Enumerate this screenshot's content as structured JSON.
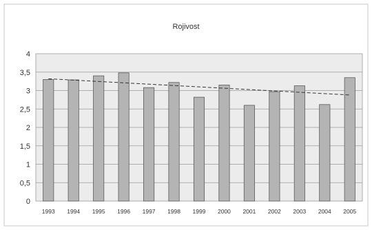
{
  "chart_data": {
    "type": "bar",
    "title": "Rojivost",
    "categories": [
      "1993",
      "1994",
      "1995",
      "1996",
      "1997",
      "1998",
      "1999",
      "2000",
      "2001",
      "2002",
      "2003",
      "2004",
      "2005"
    ],
    "series": [
      {
        "values": [
          3.3,
          3.29,
          3.4,
          3.48,
          3.08,
          3.22,
          2.82,
          3.15,
          2.6,
          2.97,
          3.13,
          2.62,
          3.35
        ]
      }
    ],
    "trendline": {
      "type": "linear",
      "start": 3.32,
      "end": 2.88
    },
    "y_ticks": [
      "0",
      "0,5",
      "1",
      "1,5",
      "2",
      "2,5",
      "3",
      "3,5",
      "4"
    ],
    "ylim": [
      0,
      4
    ],
    "xlabel": "",
    "ylabel": "",
    "grid": true,
    "legend": "none",
    "colors": {
      "bar_fill": "#b4b4b4",
      "bar_stroke": "#5a5a5a",
      "plot_background": "#ececec",
      "gridline": "#9a9a9a",
      "trendline": "#333333",
      "frame": "#c8c8c8"
    }
  }
}
